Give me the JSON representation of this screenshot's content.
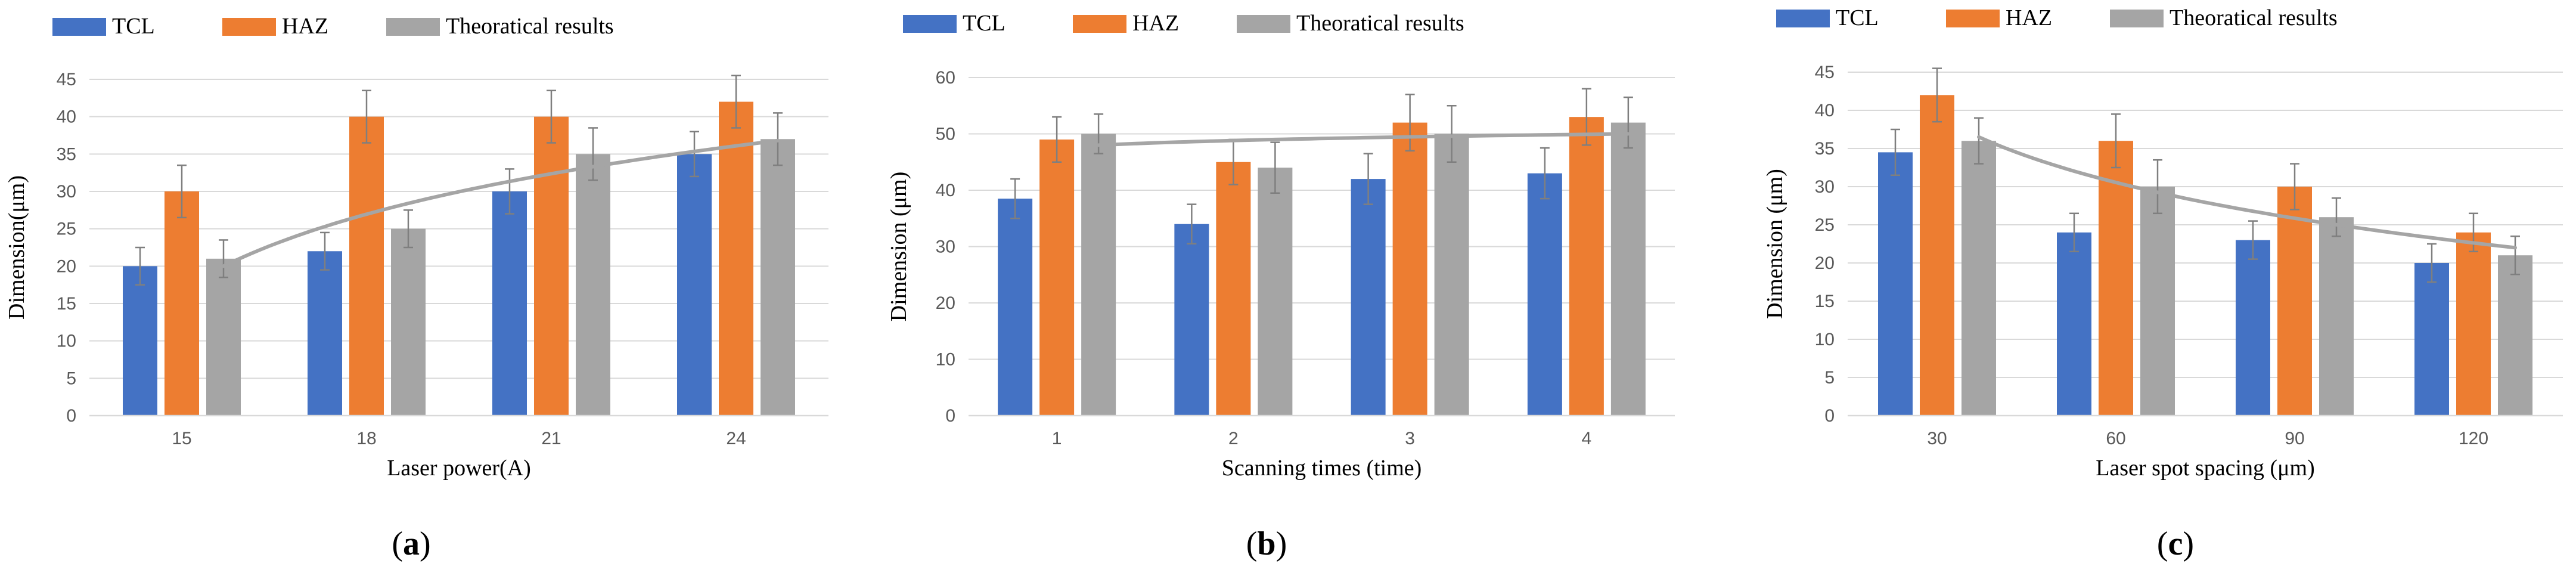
{
  "colors": {
    "tcl": "#4472C4",
    "haz": "#ED7D31",
    "theory": "#A5A5A5",
    "trend": "#A5A5A5",
    "grid": "#D9D9D9",
    "error": "#7F7F7F",
    "text": "#595959",
    "title": "#000000"
  },
  "chart_data": [
    {
      "type": "bar",
      "panel_label": "(a)",
      "panel_letter": "a",
      "xlabel": "Laser power(A)",
      "ylabel": "Dimension(μm)",
      "ylim": [
        0,
        45
      ],
      "ytick_step": 5,
      "yticks": [
        "0",
        "5",
        "10",
        "15",
        "20",
        "25",
        "30",
        "35",
        "40",
        "45"
      ],
      "categories": [
        "15",
        "18",
        "21",
        "24"
      ],
      "legend": [
        "TCL",
        "HAZ",
        "Theoratical results"
      ],
      "series": [
        {
          "name": "TCL",
          "values": [
            20,
            22,
            30,
            35
          ],
          "errors": [
            2.5,
            2.5,
            3.0,
            3.0
          ]
        },
        {
          "name": "HAZ",
          "values": [
            30,
            40,
            40,
            42
          ],
          "errors": [
            3.5,
            3.5,
            3.5,
            3.5
          ]
        },
        {
          "name": "Theoratical results",
          "values": [
            21,
            25,
            35,
            37
          ],
          "errors": [
            2.5,
            2.5,
            3.5,
            3.5
          ]
        }
      ],
      "trendline": {
        "type": "logarithmic",
        "start": 20,
        "end": 36.8
      }
    },
    {
      "type": "bar",
      "panel_label": "(b)",
      "panel_letter": "b",
      "xlabel": "Scanning times (time)",
      "ylabel": "Dimension (μm)",
      "ylim": [
        0,
        60
      ],
      "ytick_step": 10,
      "yticks": [
        "0",
        "10",
        "20",
        "30",
        "40",
        "50",
        "60"
      ],
      "categories": [
        "1",
        "2",
        "3",
        "4"
      ],
      "legend": [
        "TCL",
        "HAZ",
        "Theoratical results"
      ],
      "series": [
        {
          "name": "TCL",
          "values": [
            38.5,
            34,
            42,
            43
          ],
          "errors": [
            3.5,
            3.5,
            4.5,
            4.5
          ]
        },
        {
          "name": "HAZ",
          "values": [
            49,
            45,
            52,
            53
          ],
          "errors": [
            4.0,
            4.0,
            5.0,
            5.0
          ]
        },
        {
          "name": "Theoratical results",
          "values": [
            50,
            44,
            50,
            52
          ],
          "errors": [
            3.5,
            4.5,
            5.0,
            4.5
          ]
        }
      ],
      "trendline": {
        "type": "logarithmic",
        "start": 48,
        "end": 50
      }
    },
    {
      "type": "bar",
      "panel_label": "(c)",
      "panel_letter": "c",
      "xlabel": "Laser spot spacing (μm)",
      "ylabel": "Dimension (μm)",
      "ylim": [
        0,
        45
      ],
      "ytick_step": 5,
      "yticks": [
        "0",
        "5",
        "10",
        "15",
        "20",
        "25",
        "30",
        "35",
        "40",
        "45"
      ],
      "categories": [
        "30",
        "60",
        "90",
        "120"
      ],
      "legend": [
        "TCL",
        "HAZ",
        "Theoratical results"
      ],
      "series": [
        {
          "name": "TCL",
          "values": [
            34.5,
            24,
            23,
            20
          ],
          "errors": [
            3.0,
            2.5,
            2.5,
            2.5
          ]
        },
        {
          "name": "HAZ",
          "values": [
            42,
            36,
            30,
            24
          ],
          "errors": [
            3.5,
            3.5,
            3.0,
            2.5
          ]
        },
        {
          "name": "Theoratical results",
          "values": [
            36,
            30,
            26,
            21
          ],
          "errors": [
            3.0,
            3.5,
            2.5,
            2.5
          ]
        }
      ],
      "trendline": {
        "type": "logarithmic",
        "start": 36.5,
        "end": 22
      }
    }
  ]
}
